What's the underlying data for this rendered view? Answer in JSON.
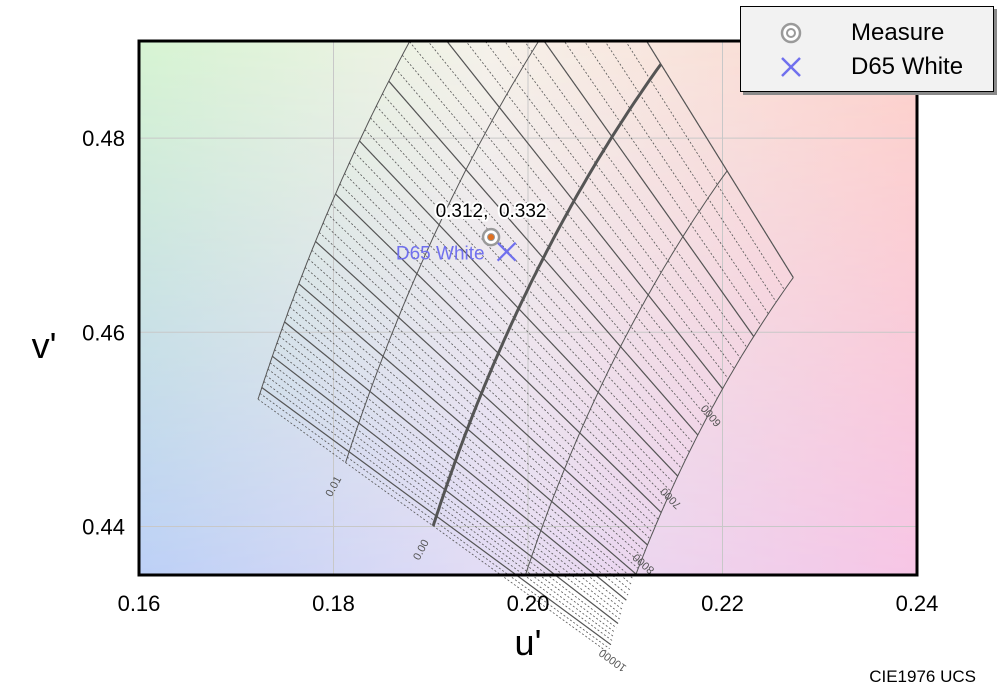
{
  "chart_data": {
    "type": "scatter",
    "diagram": "CIE1976 UCS",
    "xlabel": "u'",
    "ylabel": "v'",
    "xlim": [
      0.16,
      0.24
    ],
    "ylim": [
      0.435,
      0.49
    ],
    "xticks": [
      0.16,
      0.18,
      0.2,
      0.22,
      0.24
    ],
    "xtick_labels": [
      "0.16",
      "0.18",
      "0.20",
      "0.22",
      "0.24"
    ],
    "yticks": [
      0.44,
      0.46,
      0.48
    ],
    "ytick_labels": [
      "0.44",
      "0.46",
      "0.48"
    ],
    "grid": true,
    "legend_position": "top-right",
    "planckian_locus": {
      "cct_labels": [
        {
          "cct": 6000,
          "label": "6000"
        },
        {
          "cct": 7000,
          "label": "7000"
        },
        {
          "cct": 8000,
          "label": "8000"
        },
        {
          "cct": 10000,
          "label": "10000"
        }
      ],
      "duv_labels": [
        {
          "duv": 0.0,
          "label": "0.00"
        },
        {
          "duv": 0.01,
          "label": "0.01"
        }
      ]
    },
    "series": [
      {
        "name": "Measure",
        "marker": "ring",
        "color": "#9a9a9a",
        "x": [
          0.1962
        ],
        "y": [
          0.4698
        ]
      },
      {
        "name": "D65 White",
        "marker": "x",
        "color": "#7070ee",
        "x": [
          0.1978
        ],
        "y": [
          0.4683
        ]
      }
    ],
    "annotations": {
      "measure_coords": "0.312,  0.332",
      "white_label": "D65 White"
    }
  },
  "footer": "CIE1976 UCS"
}
